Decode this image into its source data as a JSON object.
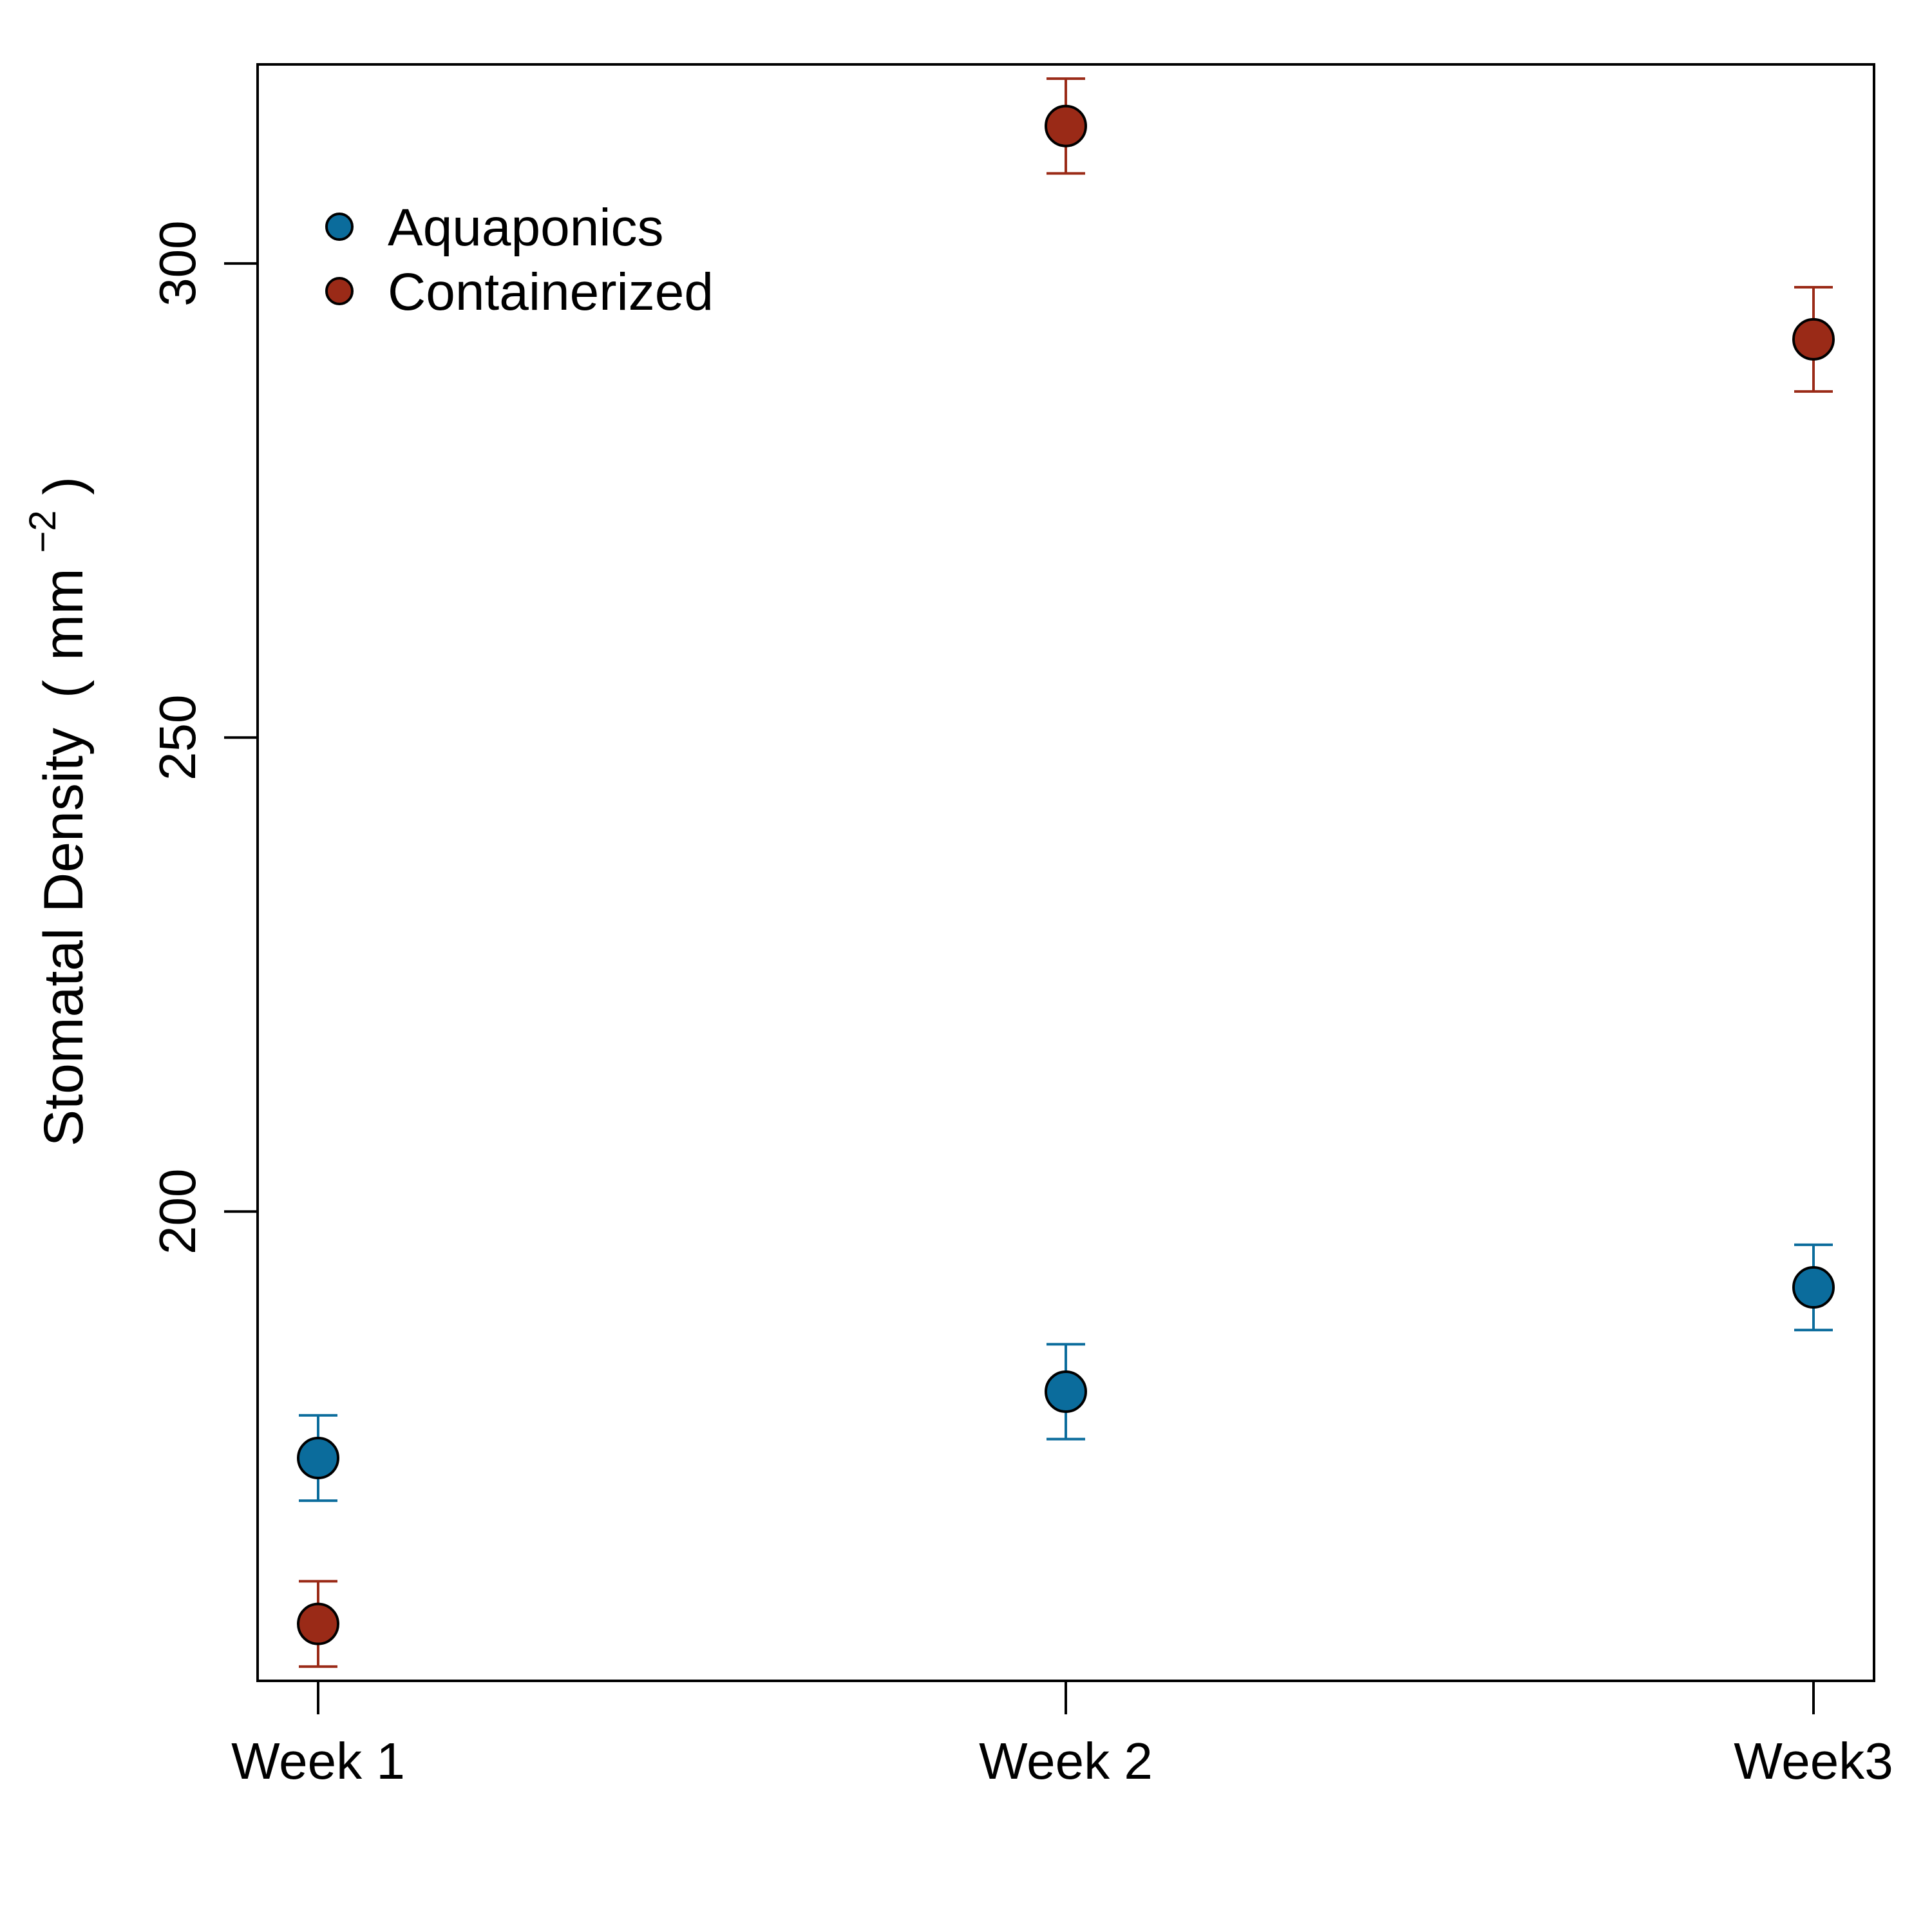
{
  "chart_data": {
    "type": "scatter",
    "title": "",
    "xlabel": "",
    "ylabel": {
      "main": "Stomatal Density",
      "open": "(",
      "unit_base": "mm",
      "unit_exponent": "−2",
      "close": ")"
    },
    "categories": [
      "Week 1",
      "Week 2",
      "Week3"
    ],
    "ylim": [
      150.5,
      321
    ],
    "yticks": [
      {
        "value": 200,
        "label": "200"
      },
      {
        "value": 250,
        "label": "250"
      },
      {
        "value": 300,
        "label": "300"
      }
    ],
    "grid": false,
    "legend_position": "top-left",
    "series": [
      {
        "name": "Aquaponics",
        "color": "#0b6c9c",
        "values": [
          174,
          181,
          192
        ],
        "lower": [
          169.5,
          176,
          187.5
        ],
        "upper": [
          178.5,
          186,
          196.5
        ]
      },
      {
        "name": "Containerized",
        "color": "#9a2a17",
        "values": [
          156.5,
          314.5,
          292
        ],
        "lower": [
          152,
          309.5,
          286.5
        ],
        "upper": [
          161,
          319.5,
          297.5
        ]
      }
    ]
  }
}
